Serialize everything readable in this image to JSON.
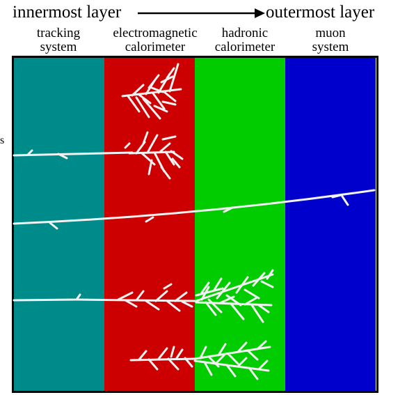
{
  "header": {
    "left_text": "innermost layer",
    "right_text": "outermost layer",
    "arrow_icon": "arrow-right-icon"
  },
  "layers": [
    {
      "line1": "tracking",
      "line2": "system",
      "color": "#008B8B"
    },
    {
      "line1": "electromagnetic",
      "line2": "calorimeter",
      "color": "#CC0000"
    },
    {
      "line1": "hadronic",
      "line2": "calorimeter",
      "color": "#00CC00"
    },
    {
      "line1": "muon",
      "line2": "system",
      "color": "#0000CC"
    }
  ],
  "colors": {
    "frame": "#000000",
    "tracks": "#F2F2F2"
  },
  "stray_mark": "s"
}
